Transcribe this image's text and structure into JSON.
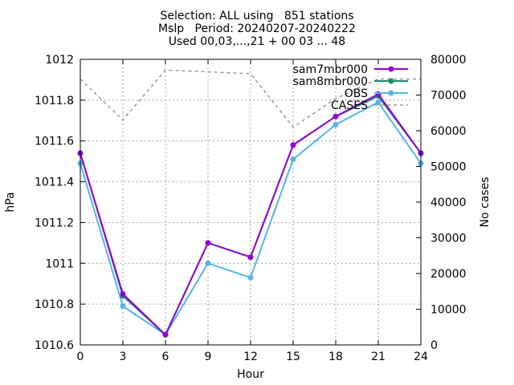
{
  "chart_data": {
    "type": "line",
    "title_lines": [
      "Selection: ALL using   851 stations",
      "Mslp   Period: 20240207-20240222",
      "Used 00,03,...,21 + 00 03 ... 48"
    ],
    "xlabel": "Hour",
    "ylabel": "hPa",
    "y2label": "No cases",
    "x": [
      0,
      3,
      6,
      9,
      12,
      15,
      18,
      21,
      24
    ],
    "xlim": [
      0,
      24
    ],
    "ylim": [
      1010.6,
      1012
    ],
    "y2lim": [
      0,
      80000
    ],
    "x_ticks": [
      "0",
      "3",
      "6",
      "9",
      "12",
      "15",
      "18",
      "21",
      "24"
    ],
    "y_ticks": [
      "1010.6",
      "1010.8",
      "1011",
      "1011.2",
      "1011.4",
      "1011.6",
      "1011.8",
      "1012"
    ],
    "y2_ticks": [
      "0",
      "10000",
      "20000",
      "30000",
      "40000",
      "50000",
      "60000",
      "70000",
      "80000"
    ],
    "grid": true,
    "legend_position": "top-right",
    "series": [
      {
        "name": "sam7mbr000",
        "color": "#9400d3",
        "axis": "y",
        "dash": "",
        "marker": "circle",
        "values": [
          1011.54,
          1010.85,
          1010.65,
          1011.1,
          1011.03,
          1011.58,
          1011.72,
          1011.83,
          1011.54
        ]
      },
      {
        "name": "sam8mbr000",
        "color": "#1a8c6a",
        "axis": "y",
        "dash": "",
        "marker": "circle",
        "values": [
          1011.54,
          1010.84,
          1010.65,
          1011.1,
          1011.03,
          1011.58,
          1011.72,
          1011.82,
          1011.54
        ]
      },
      {
        "name": "OBS",
        "color": "#56b4e9",
        "axis": "y",
        "dash": "",
        "marker": "circle",
        "values": [
          1011.49,
          1010.79,
          1010.65,
          1011.0,
          1010.93,
          1011.51,
          1011.68,
          1011.79,
          1011.49
        ]
      },
      {
        "name": "CASES",
        "color": "#8c8c8c",
        "axis": "y2",
        "dash": "4,4",
        "marker": "none",
        "values": [
          74500,
          63000,
          77000,
          76500,
          76000,
          61000,
          69000,
          74500,
          74500
        ]
      }
    ]
  }
}
